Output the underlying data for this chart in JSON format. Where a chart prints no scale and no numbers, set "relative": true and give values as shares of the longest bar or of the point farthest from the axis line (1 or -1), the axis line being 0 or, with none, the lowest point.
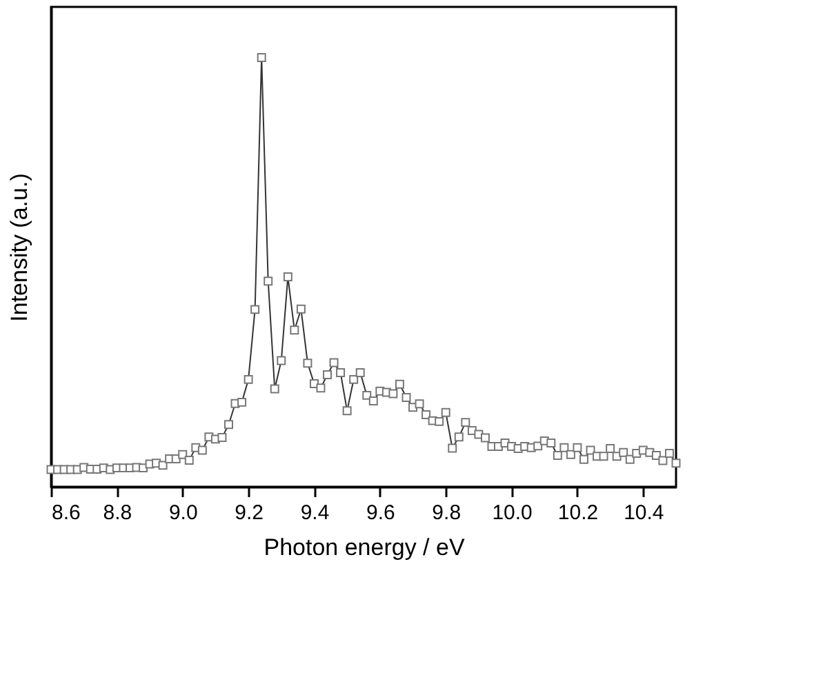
{
  "chart_data": {
    "type": "line",
    "relative": true,
    "xlabel": "Photon energy / eV",
    "ylabel": "Intensity (a.u.)",
    "xlim": [
      8.6,
      10.5
    ],
    "xticks": [
      8.6,
      8.8,
      {
        "value": 9.0,
        "label": "9.0"
      },
      9.2,
      9.4,
      9.6,
      9.8,
      {
        "value": 10.0,
        "label": "10.0"
      },
      10.2,
      10.4
    ],
    "marker": "square",
    "line_style": "solid",
    "x": [
      8.6,
      8.62,
      8.64,
      8.66,
      8.68,
      8.7,
      8.72,
      8.74,
      8.76,
      8.78,
      8.8,
      8.82,
      8.84,
      8.86,
      8.88,
      8.9,
      8.92,
      8.94,
      8.96,
      8.98,
      9.0,
      9.02,
      9.04,
      9.06,
      9.08,
      9.1,
      9.12,
      9.14,
      9.16,
      9.18,
      9.2,
      9.22,
      9.24,
      9.26,
      9.28,
      9.3,
      9.32,
      9.34,
      9.36,
      9.38,
      9.4,
      9.42,
      9.44,
      9.46,
      9.48,
      9.5,
      9.52,
      9.54,
      9.56,
      9.58,
      9.6,
      9.62,
      9.64,
      9.66,
      9.68,
      9.7,
      9.72,
      9.74,
      9.76,
      9.78,
      9.8,
      9.82,
      9.84,
      9.86,
      9.88,
      9.9,
      9.92,
      9.94,
      9.96,
      9.98,
      10.0,
      10.02,
      10.04,
      10.06,
      10.08,
      10.1,
      10.12,
      10.14,
      10.16,
      10.18,
      10.2,
      10.22,
      10.24,
      10.26,
      10.28,
      10.3,
      10.32,
      10.34,
      10.36,
      10.38,
      10.4,
      10.42,
      10.44,
      10.46,
      10.48,
      10.5
    ],
    "series": [
      {
        "color": "#333333",
        "values": [
          0.04,
          0.04,
          0.04,
          0.04,
          0.04,
          0.045,
          0.041,
          0.041,
          0.044,
          0.04,
          0.044,
          0.044,
          0.044,
          0.045,
          0.044,
          0.053,
          0.055,
          0.05,
          0.065,
          0.065,
          0.075,
          0.062,
          0.091,
          0.085,
          0.116,
          0.111,
          0.115,
          0.145,
          0.194,
          0.197,
          0.25,
          0.413,
          1.0,
          0.479,
          0.228,
          0.294,
          0.489,
          0.365,
          0.414,
          0.288,
          0.24,
          0.23,
          0.261,
          0.289,
          0.266,
          0.177,
          0.25,
          0.266,
          0.213,
          0.2,
          0.223,
          0.22,
          0.217,
          0.239,
          0.208,
          0.185,
          0.193,
          0.168,
          0.154,
          0.152,
          0.173,
          0.09,
          0.116,
          0.15,
          0.131,
          0.122,
          0.114,
          0.094,
          0.094,
          0.102,
          0.094,
          0.089,
          0.094,
          0.091,
          0.095,
          0.107,
          0.102,
          0.073,
          0.091,
          0.075,
          0.091,
          0.064,
          0.085,
          0.071,
          0.071,
          0.089,
          0.071,
          0.08,
          0.064,
          0.078,
          0.085,
          0.08,
          0.073,
          0.061,
          0.078,
          0.055
        ]
      }
    ]
  }
}
